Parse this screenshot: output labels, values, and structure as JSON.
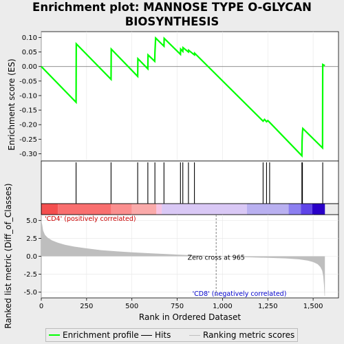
{
  "title_line1": "Enrichment plot: MANNOSE TYPE O-GLYCAN",
  "title_line2": "BIOSYNTHESIS",
  "chart_data": {
    "type": "line",
    "es_panel": {
      "ylabel": "Enrichment score (ES)",
      "ylim": [
        -0.325,
        0.12
      ],
      "yticks": [
        0.1,
        0.05,
        0.0,
        -0.05,
        -0.1,
        -0.15,
        -0.2,
        -0.25,
        -0.3
      ],
      "ytick_labels": [
        "0.10",
        "0.05",
        "0.00",
        "-0.05",
        "-0.10",
        "-0.15",
        "-0.20",
        "-0.25",
        "-0.30"
      ],
      "points": [
        [
          0,
          0.0
        ],
        [
          192,
          -0.123
        ],
        [
          193,
          0.078
        ],
        [
          385,
          -0.044
        ],
        [
          386,
          0.06
        ],
        [
          532,
          -0.034
        ],
        [
          533,
          0.027
        ],
        [
          588,
          -0.008
        ],
        [
          589,
          0.04
        ],
        [
          626,
          0.018
        ],
        [
          627,
          0.047
        ],
        [
          631,
          0.098
        ],
        [
          677,
          0.07
        ],
        [
          678,
          0.097
        ],
        [
          768,
          0.042
        ],
        [
          769,
          0.06
        ],
        [
          781,
          0.052
        ],
        [
          782,
          0.065
        ],
        [
          812,
          0.05
        ],
        [
          813,
          0.056
        ],
        [
          845,
          0.04
        ],
        [
          846,
          0.046
        ],
        [
          1224,
          -0.188
        ],
        [
          1232,
          -0.182
        ],
        [
          1243,
          -0.19
        ],
        [
          1250,
          -0.186
        ],
        [
          1260,
          -0.192
        ],
        [
          1438,
          -0.307
        ],
        [
          1439,
          -0.258
        ],
        [
          1441,
          -0.228
        ],
        [
          1443,
          -0.213
        ],
        [
          1552,
          -0.28
        ],
        [
          1553,
          0.007
        ],
        [
          1565,
          0.003
        ]
      ]
    },
    "hits": [
      192,
      385,
      532,
      588,
      627,
      677,
      768,
      781,
      812,
      845,
      1224,
      1243,
      1260,
      1438,
      1441,
      1553
    ],
    "color_bar": {
      "colors": [
        "#dd2f2f",
        "#f44f4f",
        "#f96f6f",
        "#fb8f8f",
        "#faaaaa",
        "#f7c3e3",
        "#d9c8f5",
        "#b9b0f0",
        "#8c7ff0",
        "#5f44e8",
        "#2a00c8"
      ],
      "boundaries": [
        0,
        5,
        92,
        385,
        500,
        635,
        665,
        1135,
        1365,
        1433,
        1495,
        1565
      ]
    },
    "metric_panel": {
      "ylabel": "Ranked list metric (Diff_of_Classes)",
      "xlabel": "Rank in Ordered Dataset",
      "xlim": [
        0,
        1640
      ],
      "ylim": [
        -5.8,
        5.8
      ],
      "xticks": [
        0,
        250,
        500,
        750,
        1000,
        1250,
        1500
      ],
      "xtick_labels": [
        "0",
        "250",
        "500",
        "750",
        "1,000",
        "1,250",
        "1,500"
      ],
      "yticks": [
        5.0,
        2.5,
        0.0,
        -2.5,
        -5.0
      ],
      "ytick_labels": [
        "5.0",
        "2.5",
        "0.0",
        "-2.5",
        "-5.0"
      ],
      "profile": [
        [
          0,
          5.0
        ],
        [
          5,
          4.4
        ],
        [
          10,
          3.6
        ],
        [
          20,
          3.0
        ],
        [
          35,
          2.6
        ],
        [
          60,
          2.2
        ],
        [
          90,
          1.9
        ],
        [
          130,
          1.6
        ],
        [
          180,
          1.35
        ],
        [
          250,
          1.1
        ],
        [
          330,
          0.85
        ],
        [
          420,
          0.68
        ],
        [
          500,
          0.55
        ],
        [
          600,
          0.42
        ],
        [
          700,
          0.3
        ],
        [
          800,
          0.18
        ],
        [
          900,
          0.08
        ],
        [
          965,
          0.0
        ],
        [
          1050,
          -0.08
        ],
        [
          1150,
          -0.15
        ],
        [
          1250,
          -0.22
        ],
        [
          1350,
          -0.3
        ],
        [
          1420,
          -0.42
        ],
        [
          1470,
          -0.6
        ],
        [
          1500,
          -0.8
        ],
        [
          1525,
          -1.1
        ],
        [
          1540,
          -1.5
        ],
        [
          1550,
          -2.0
        ],
        [
          1556,
          -2.8
        ],
        [
          1560,
          -4.0
        ],
        [
          1563,
          -5.5
        ],
        [
          1565,
          -5.6
        ]
      ],
      "zero_cross": 965,
      "zero_cross_label": "Zero cross at 965",
      "pos_label": "'CD4' (positively correlated)",
      "neg_label": "'CD8' (negatively correlated)"
    },
    "legend": [
      "Enrichment profile",
      "Hits",
      "Ranking metric scores"
    ]
  },
  "colors": {
    "es_line": "#00ff00",
    "hit": "#000000",
    "metric_fill": "#bebebe",
    "pos_label": "#cc0000",
    "neg_label": "#0000cc",
    "zero_line": "#808080"
  }
}
